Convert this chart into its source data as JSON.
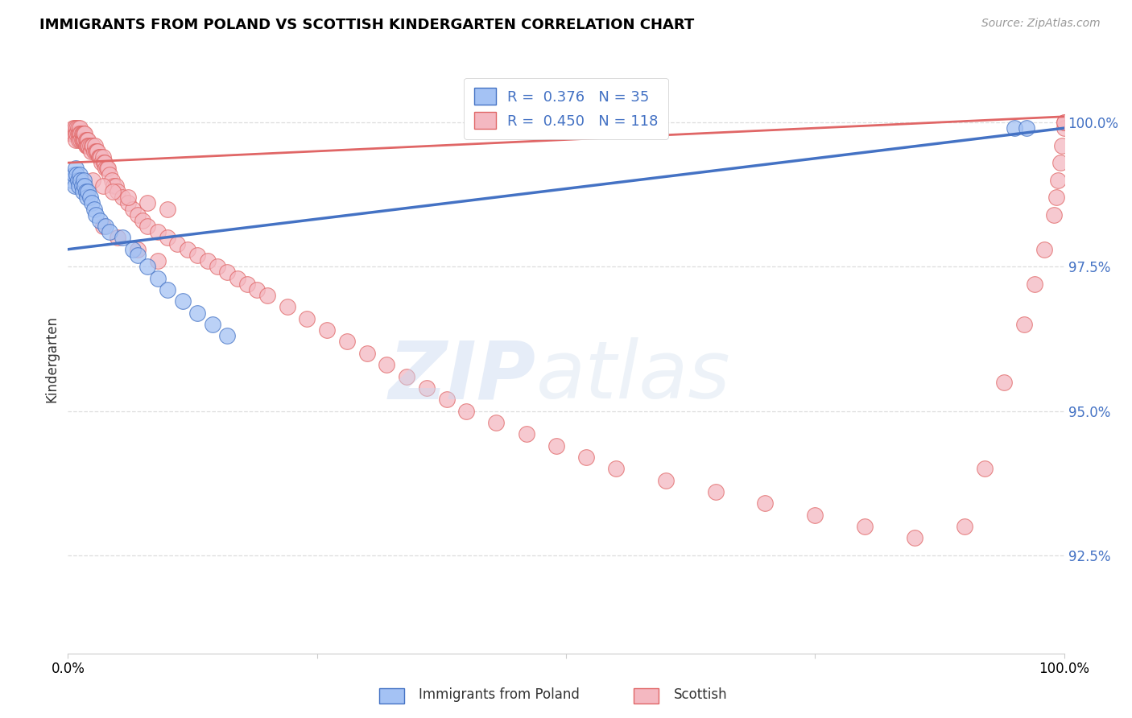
{
  "title": "IMMIGRANTS FROM POLAND VS SCOTTISH KINDERGARTEN CORRELATION CHART",
  "source": "Source: ZipAtlas.com",
  "ylabel": "Kindergarten",
  "ytick_labels": [
    "100.0%",
    "97.5%",
    "95.0%",
    "92.5%"
  ],
  "ytick_values": [
    1.0,
    0.975,
    0.95,
    0.925
  ],
  "xmin": 0.0,
  "xmax": 1.0,
  "ymin": 0.908,
  "ymax": 1.01,
  "legend_label1": "Immigrants from Poland",
  "legend_label2": "Scottish",
  "legend_R1": "R =  0.376",
  "legend_N1": "N = 35",
  "legend_R2": "R =  0.450",
  "legend_N2": "N = 118",
  "color_blue": "#a4c2f4",
  "color_pink": "#f4b8c1",
  "color_blue_line": "#4472c4",
  "color_pink_line": "#e06666",
  "color_title": "#000000",
  "color_source": "#999999",
  "color_ytick": "#4472c4",
  "blue_scatter_x": [
    0.004,
    0.006,
    0.007,
    0.008,
    0.009,
    0.01,
    0.011,
    0.012,
    0.013,
    0.014,
    0.015,
    0.016,
    0.017,
    0.018,
    0.019,
    0.02,
    0.022,
    0.024,
    0.026,
    0.028,
    0.032,
    0.038,
    0.042,
    0.055,
    0.065,
    0.07,
    0.08,
    0.09,
    0.1,
    0.115,
    0.13,
    0.145,
    0.16,
    0.95,
    0.962
  ],
  "blue_scatter_y": [
    0.99,
    0.991,
    0.989,
    0.992,
    0.991,
    0.99,
    0.989,
    0.991,
    0.99,
    0.989,
    0.988,
    0.99,
    0.989,
    0.988,
    0.987,
    0.988,
    0.987,
    0.986,
    0.985,
    0.984,
    0.983,
    0.982,
    0.981,
    0.98,
    0.978,
    0.977,
    0.975,
    0.973,
    0.971,
    0.969,
    0.967,
    0.965,
    0.963,
    0.999,
    0.999
  ],
  "pink_scatter_x": [
    0.004,
    0.005,
    0.006,
    0.007,
    0.008,
    0.008,
    0.009,
    0.009,
    0.01,
    0.01,
    0.011,
    0.011,
    0.012,
    0.012,
    0.013,
    0.013,
    0.014,
    0.014,
    0.015,
    0.015,
    0.016,
    0.016,
    0.017,
    0.017,
    0.018,
    0.018,
    0.019,
    0.019,
    0.02,
    0.02,
    0.021,
    0.022,
    0.023,
    0.024,
    0.025,
    0.026,
    0.027,
    0.028,
    0.029,
    0.03,
    0.031,
    0.032,
    0.033,
    0.034,
    0.035,
    0.036,
    0.037,
    0.038,
    0.039,
    0.04,
    0.042,
    0.044,
    0.046,
    0.048,
    0.05,
    0.055,
    0.06,
    0.065,
    0.07,
    0.075,
    0.08,
    0.09,
    0.1,
    0.11,
    0.12,
    0.13,
    0.14,
    0.15,
    0.16,
    0.17,
    0.18,
    0.19,
    0.2,
    0.22,
    0.24,
    0.26,
    0.28,
    0.3,
    0.32,
    0.34,
    0.36,
    0.38,
    0.4,
    0.43,
    0.46,
    0.49,
    0.52,
    0.55,
    0.6,
    0.65,
    0.7,
    0.75,
    0.8,
    0.85,
    0.9,
    0.92,
    0.94,
    0.96,
    0.97,
    0.98,
    0.99,
    0.992,
    0.994,
    0.996,
    0.998,
    1.0,
    1.0,
    1.0,
    0.025,
    0.035,
    0.045,
    0.06,
    0.08,
    0.1,
    0.035,
    0.05,
    0.07,
    0.09
  ],
  "pink_scatter_y": [
    0.998,
    0.999,
    0.998,
    0.999,
    0.998,
    0.997,
    0.999,
    0.998,
    0.999,
    0.998,
    0.998,
    0.997,
    0.999,
    0.998,
    0.998,
    0.997,
    0.998,
    0.997,
    0.998,
    0.997,
    0.997,
    0.998,
    0.997,
    0.998,
    0.997,
    0.996,
    0.997,
    0.996,
    0.997,
    0.996,
    0.996,
    0.996,
    0.995,
    0.996,
    0.996,
    0.995,
    0.996,
    0.995,
    0.995,
    0.995,
    0.994,
    0.994,
    0.994,
    0.993,
    0.994,
    0.993,
    0.993,
    0.992,
    0.992,
    0.992,
    0.991,
    0.99,
    0.989,
    0.989,
    0.988,
    0.987,
    0.986,
    0.985,
    0.984,
    0.983,
    0.982,
    0.981,
    0.98,
    0.979,
    0.978,
    0.977,
    0.976,
    0.975,
    0.974,
    0.973,
    0.972,
    0.971,
    0.97,
    0.968,
    0.966,
    0.964,
    0.962,
    0.96,
    0.958,
    0.956,
    0.954,
    0.952,
    0.95,
    0.948,
    0.946,
    0.944,
    0.942,
    0.94,
    0.938,
    0.936,
    0.934,
    0.932,
    0.93,
    0.928,
    0.93,
    0.94,
    0.955,
    0.965,
    0.972,
    0.978,
    0.984,
    0.987,
    0.99,
    0.993,
    0.996,
    0.999,
    1.0,
    1.0,
    0.99,
    0.989,
    0.988,
    0.987,
    0.986,
    0.985,
    0.982,
    0.98,
    0.978,
    0.976
  ],
  "blue_line_x": [
    0.0,
    1.0
  ],
  "blue_line_y": [
    0.978,
    0.999
  ],
  "pink_line_x": [
    0.0,
    1.0
  ],
  "pink_line_y": [
    0.993,
    1.001
  ],
  "grid_color": "#dddddd",
  "background_color": "#ffffff"
}
